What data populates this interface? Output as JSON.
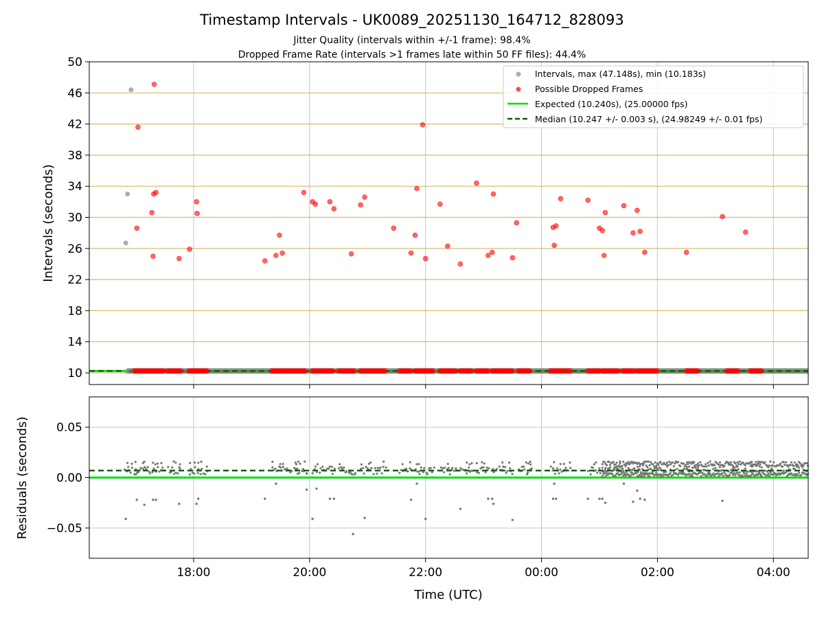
{
  "figure": {
    "title": "Timestamp Intervals - UK0089_20251130_164712_828093",
    "subtitle1": "Jitter Quality (intervals within +/-1 frame): 98.4%",
    "subtitle2": "Dropped Frame Rate (intervals >1 frames late within 50 FF files): 44.4%",
    "xlabel": "Time (UTC)"
  },
  "colors": {
    "intervals": "#999999",
    "dropped": "#ff0000",
    "expected": "#00e000",
    "median": "#006400",
    "hgrid_top": "#d4b96a",
    "grid": "#cccccc",
    "residual": "#777777"
  },
  "chart_data": [
    {
      "type": "scatter",
      "panel": "top",
      "ylabel": "Intervals (seconds)",
      "x_unit": "hours since 00:00 UTC of 2025-11-30 (values > 24 are the next day)",
      "xlim": [
        16.2,
        28.6
      ],
      "ylim": [
        8.5,
        50
      ],
      "yticks": [
        10,
        14,
        18,
        22,
        26,
        30,
        34,
        38,
        42,
        46,
        50
      ],
      "xticks": [
        18,
        20,
        22,
        24,
        26,
        28
      ],
      "xtick_labels": [
        "18:00",
        "20:00",
        "22:00",
        "00:00",
        "02:00",
        "04:00"
      ],
      "legend": {
        "position": "top-right",
        "entries": [
          "Intervals, max (47.148s), min (10.183s)",
          "Possible Dropped Frames",
          "Expected (10.240s), (25.00000 fps)",
          "Median (10.247 +/- 0.003 s), (24.98249 +/- 0.01 fps)"
        ]
      },
      "expected_value": 10.24,
      "median_value": 10.247,
      "interval_points": [
        {
          "x": 16.85,
          "y": 10.2
        },
        {
          "x": 16.83,
          "y": 26.7
        },
        {
          "x": 16.86,
          "y": 33.0
        },
        {
          "x": 16.92,
          "y": 46.4
        }
      ],
      "baseline_clusters_x": [
        [
          16.98,
          17.5
        ],
        [
          17.55,
          17.78
        ],
        [
          17.92,
          18.25
        ],
        [
          19.35,
          19.95
        ],
        [
          20.05,
          20.42
        ],
        [
          20.5,
          20.8
        ],
        [
          20.88,
          21.3
        ],
        [
          21.55,
          21.75
        ],
        [
          21.82,
          22.15
        ],
        [
          22.25,
          22.55
        ],
        [
          22.6,
          22.82
        ],
        [
          22.88,
          23.1
        ],
        [
          23.15,
          23.5
        ],
        [
          23.6,
          23.82
        ],
        [
          24.15,
          24.5
        ],
        [
          24.8,
          25.02
        ],
        [
          25.05,
          25.35
        ],
        [
          25.4,
          25.6
        ],
        [
          25.65,
          26.0
        ],
        [
          26.5,
          26.7
        ],
        [
          27.2,
          27.4
        ],
        [
          27.6,
          27.8
        ]
      ],
      "dropped_points": [
        {
          "x": 17.32,
          "y": 47.1
        },
        {
          "x": 17.04,
          "y": 41.6
        },
        {
          "x": 17.35,
          "y": 33.2
        },
        {
          "x": 17.31,
          "y": 33.0
        },
        {
          "x": 17.28,
          "y": 30.6
        },
        {
          "x": 17.02,
          "y": 28.6
        },
        {
          "x": 17.3,
          "y": 25.0
        },
        {
          "x": 17.75,
          "y": 24.7
        },
        {
          "x": 18.05,
          "y": 32.0
        },
        {
          "x": 18.06,
          "y": 30.5
        },
        {
          "x": 17.93,
          "y": 25.9
        },
        {
          "x": 19.23,
          "y": 24.4
        },
        {
          "x": 19.42,
          "y": 25.1
        },
        {
          "x": 19.48,
          "y": 27.7
        },
        {
          "x": 19.53,
          "y": 25.4
        },
        {
          "x": 19.9,
          "y": 33.2
        },
        {
          "x": 20.05,
          "y": 32.0
        },
        {
          "x": 20.1,
          "y": 31.7
        },
        {
          "x": 20.35,
          "y": 32.0
        },
        {
          "x": 20.42,
          "y": 31.1
        },
        {
          "x": 20.72,
          "y": 25.3
        },
        {
          "x": 20.88,
          "y": 31.6
        },
        {
          "x": 20.95,
          "y": 32.6
        },
        {
          "x": 21.45,
          "y": 28.6
        },
        {
          "x": 21.75,
          "y": 25.4
        },
        {
          "x": 21.82,
          "y": 27.7
        },
        {
          "x": 21.85,
          "y": 33.7
        },
        {
          "x": 21.95,
          "y": 41.9
        },
        {
          "x": 22.0,
          "y": 24.7
        },
        {
          "x": 22.25,
          "y": 31.7
        },
        {
          "x": 22.38,
          "y": 26.3
        },
        {
          "x": 22.6,
          "y": 24.0
        },
        {
          "x": 22.88,
          "y": 34.4
        },
        {
          "x": 23.08,
          "y": 25.1
        },
        {
          "x": 23.15,
          "y": 25.5
        },
        {
          "x": 23.17,
          "y": 33.0
        },
        {
          "x": 23.5,
          "y": 24.8
        },
        {
          "x": 23.57,
          "y": 29.3
        },
        {
          "x": 24.2,
          "y": 28.7
        },
        {
          "x": 24.25,
          "y": 28.9
        },
        {
          "x": 24.22,
          "y": 26.4
        },
        {
          "x": 24.33,
          "y": 32.4
        },
        {
          "x": 24.8,
          "y": 32.2
        },
        {
          "x": 25.0,
          "y": 28.6
        },
        {
          "x": 25.05,
          "y": 28.3
        },
        {
          "x": 25.1,
          "y": 30.6
        },
        {
          "x": 25.08,
          "y": 25.1
        },
        {
          "x": 25.42,
          "y": 31.5
        },
        {
          "x": 25.58,
          "y": 28.0
        },
        {
          "x": 25.65,
          "y": 30.9
        },
        {
          "x": 25.7,
          "y": 28.2
        },
        {
          "x": 25.78,
          "y": 25.5
        },
        {
          "x": 26.5,
          "y": 25.5
        },
        {
          "x": 27.12,
          "y": 30.1
        },
        {
          "x": 27.52,
          "y": 28.1
        }
      ]
    },
    {
      "type": "scatter",
      "panel": "bottom",
      "ylabel": "Residuals (seconds)",
      "xlabel": "Time (UTC)",
      "xlim": [
        16.2,
        28.6
      ],
      "ylim": [
        -0.08,
        0.08
      ],
      "yticks": [
        0.05,
        0.0,
        -0.05
      ],
      "ytick_labels": [
        "0.05",
        "0.00",
        "−0.05"
      ],
      "xticks": [
        18,
        20,
        22,
        24,
        26,
        28
      ],
      "xtick_labels": [
        "18:00",
        "20:00",
        "22:00",
        "00:00",
        "02:00",
        "04:00"
      ],
      "expected_residual": 0.0,
      "median_residual": 0.007,
      "dense_region_x": [
        25.05,
        28.6
      ],
      "outliers": [
        {
          "x": 16.83,
          "y": -0.041
        },
        {
          "x": 17.02,
          "y": -0.022
        },
        {
          "x": 17.15,
          "y": -0.027
        },
        {
          "x": 17.3,
          "y": -0.022
        },
        {
          "x": 17.35,
          "y": -0.022
        },
        {
          "x": 17.75,
          "y": -0.026
        },
        {
          "x": 18.05,
          "y": -0.026
        },
        {
          "x": 18.08,
          "y": -0.021
        },
        {
          "x": 19.23,
          "y": -0.021
        },
        {
          "x": 19.42,
          "y": -0.006
        },
        {
          "x": 19.95,
          "y": -0.012
        },
        {
          "x": 20.05,
          "y": -0.041
        },
        {
          "x": 20.12,
          "y": -0.011
        },
        {
          "x": 20.35,
          "y": -0.021
        },
        {
          "x": 20.42,
          "y": -0.021
        },
        {
          "x": 20.75,
          "y": -0.056
        },
        {
          "x": 20.95,
          "y": -0.04
        },
        {
          "x": 21.75,
          "y": -0.022
        },
        {
          "x": 21.85,
          "y": -0.006
        },
        {
          "x": 22.0,
          "y": -0.041
        },
        {
          "x": 22.6,
          "y": -0.031
        },
        {
          "x": 23.08,
          "y": -0.021
        },
        {
          "x": 23.15,
          "y": -0.021
        },
        {
          "x": 23.17,
          "y": -0.026
        },
        {
          "x": 23.5,
          "y": -0.042
        },
        {
          "x": 24.2,
          "y": -0.021
        },
        {
          "x": 24.25,
          "y": -0.021
        },
        {
          "x": 24.22,
          "y": -0.006
        },
        {
          "x": 24.8,
          "y": -0.021
        },
        {
          "x": 25.0,
          "y": -0.021
        },
        {
          "x": 25.05,
          "y": -0.021
        },
        {
          "x": 25.1,
          "y": -0.025
        },
        {
          "x": 25.42,
          "y": -0.006
        },
        {
          "x": 25.58,
          "y": -0.024
        },
        {
          "x": 25.65,
          "y": -0.013
        },
        {
          "x": 25.7,
          "y": -0.021
        },
        {
          "x": 25.78,
          "y": -0.022
        },
        {
          "x": 27.12,
          "y": -0.023
        }
      ]
    }
  ]
}
